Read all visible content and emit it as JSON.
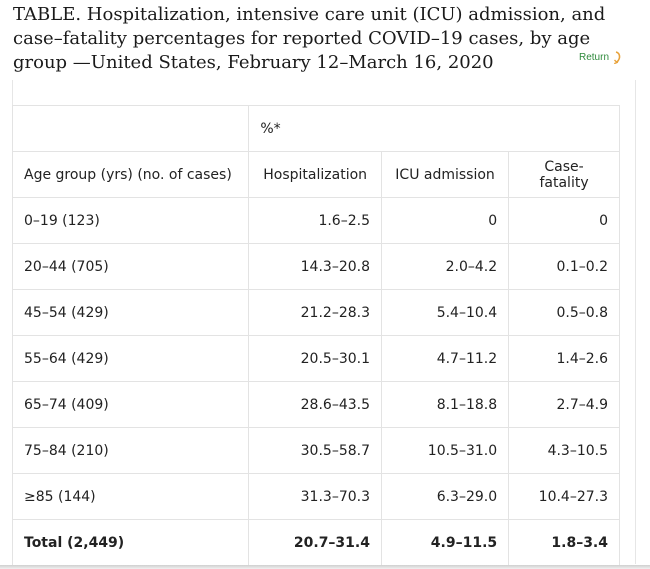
{
  "title": "TABLE. Hospitalization, intensive care unit (ICU) admission, and case–fatality percentages for reported COVID–19 cases, by age group —United States, February 12–March 16, 2020",
  "return_label": "Return",
  "colors": {
    "return_green": "#2f8a3c",
    "border": "#e3e3e3",
    "text": "#222222"
  },
  "table": {
    "group_header": "%*",
    "columns": {
      "age": "Age group (yrs) (no. of cases)",
      "hospitalization": "Hospitalization",
      "icu": "ICU admission",
      "case_fatality": "Case-fatality"
    },
    "rows": [
      {
        "age": "0–19 (123)",
        "hospitalization": "1.6–2.5",
        "icu": "0",
        "case_fatality": "0"
      },
      {
        "age": "20–44 (705)",
        "hospitalization": "14.3–20.8",
        "icu": "2.0–4.2",
        "case_fatality": "0.1–0.2"
      },
      {
        "age": "45–54 (429)",
        "hospitalization": "21.2–28.3",
        "icu": "5.4–10.4",
        "case_fatality": "0.5–0.8"
      },
      {
        "age": "55–64 (429)",
        "hospitalization": "20.5–30.1",
        "icu": "4.7–11.2",
        "case_fatality": "1.4–2.6"
      },
      {
        "age": "65–74 (409)",
        "hospitalization": "28.6–43.5",
        "icu": "8.1–18.8",
        "case_fatality": "2.7–4.9"
      },
      {
        "age": "75–84 (210)",
        "hospitalization": "30.5–58.7",
        "icu": "10.5–31.0",
        "case_fatality": "4.3–10.5"
      },
      {
        "age": "≥85 (144)",
        "hospitalization": "31.3–70.3",
        "icu": "6.3–29.0",
        "case_fatality": "10.4–27.3"
      }
    ],
    "total": {
      "age": "Total (2,449)",
      "hospitalization": "20.7–31.4",
      "icu": "4.9–11.5",
      "case_fatality": "1.8–3.4"
    }
  }
}
